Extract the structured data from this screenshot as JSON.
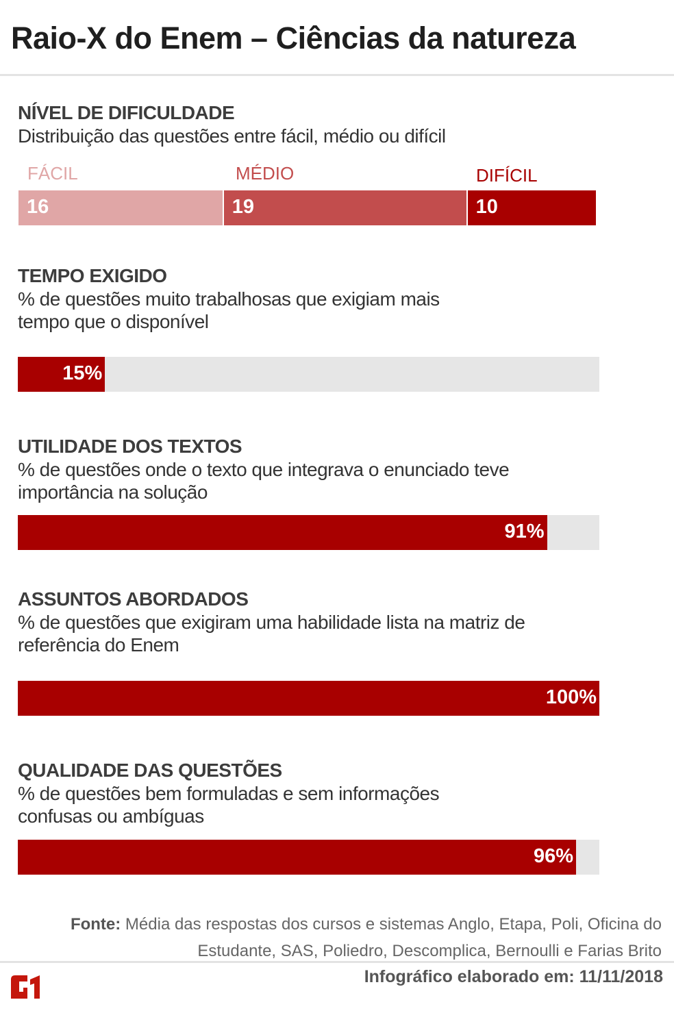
{
  "title": "Raio-X do Enem – Ciências da natureza",
  "chart_data": [
    {
      "type": "bar",
      "stacked": true,
      "title": "NÍVEL DE DIFICULDADE",
      "subtitle": "Distribuição das questões entre fácil, médio ou difícil",
      "categories": [
        "FÁCIL",
        "MÉDIO",
        "DIFÍCIL"
      ],
      "values": [
        16,
        19,
        10
      ],
      "colors": [
        "#e0a6a6",
        "#c24d4d",
        "#a80000"
      ]
    },
    {
      "type": "bar",
      "title": "TEMPO EXIGIDO",
      "subtitle": "% de questões muito trabalhosas que exigiam mais tempo que o disponível",
      "values": [
        15
      ],
      "label": "15%",
      "ylim": [
        0,
        100
      ]
    },
    {
      "type": "bar",
      "title": "UTILIDADE DOS TEXTOS",
      "subtitle": "% de questões onde o texto que integrava o enunciado teve importância na solução",
      "values": [
        91
      ],
      "label": "91%",
      "ylim": [
        0,
        100
      ]
    },
    {
      "type": "bar",
      "title": "ASSUNTOS ABORDADOS",
      "subtitle": "% de questões que exigiram uma habilidade lista na matriz de referência do Enem",
      "values": [
        100
      ],
      "label": "100%",
      "ylim": [
        0,
        100
      ]
    },
    {
      "type": "bar",
      "title": "QUALIDADE DAS QUESTÕES",
      "subtitle": "% de questões bem formuladas e sem informações confusas ou ambíguas",
      "values": [
        96
      ],
      "label": "96%",
      "ylim": [
        0,
        100
      ]
    }
  ],
  "colors": {
    "fill": "#a80000",
    "track": "#e6e6e6"
  },
  "footer": {
    "source_label": "Fonte:",
    "source_text": "Média das respostas dos cursos e sistemas Anglo, Etapa, Poli, Oficina do Estudante, SAS, Poliedro, Descomplica, Bernoulli e Farias Brito",
    "date": "Infográfico elaborado em: 11/11/2018",
    "logo": "G1"
  }
}
